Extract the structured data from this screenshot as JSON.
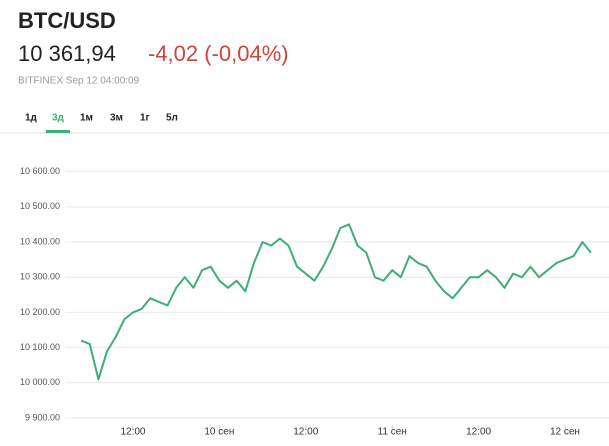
{
  "header": {
    "title": "BTC/USD",
    "price": "10 361,94",
    "change": "-4,02 (-0,04%)",
    "source": "BITFINEX Sep 12 04:00:09",
    "tabs": [
      {
        "label": "1д"
      },
      {
        "label": "3д",
        "active": true
      },
      {
        "label": "1м"
      },
      {
        "label": "3м"
      },
      {
        "label": "1г"
      },
      {
        "label": "5л"
      }
    ]
  },
  "chart_data": {
    "type": "line",
    "color": "#3daf76",
    "grid": true,
    "ylim": [
      9880,
      10690
    ],
    "yticks": [
      {
        "value": 9900,
        "label": "9 900.00"
      },
      {
        "value": 10000,
        "label": "10 000.00"
      },
      {
        "value": 10100,
        "label": "10 100.00"
      },
      {
        "value": 10200,
        "label": "10 200.00"
      },
      {
        "value": 10300,
        "label": "10 300.00"
      },
      {
        "value": 10400,
        "label": "10 400.00"
      },
      {
        "value": 10500,
        "label": "10 500.00"
      },
      {
        "value": 10600,
        "label": "10 600.00"
      }
    ],
    "categories": [
      null,
      null,
      null,
      null,
      null,
      null,
      null,
      "12:00",
      null,
      null,
      null,
      null,
      null,
      null,
      null,
      null,
      null,
      "10 сен",
      null,
      null,
      null,
      null,
      null,
      null,
      null,
      null,
      null,
      "12:00",
      null,
      null,
      null,
      null,
      null,
      null,
      null,
      null,
      null,
      "11 сен",
      null,
      null,
      null,
      null,
      null,
      null,
      null,
      null,
      null,
      "12:00",
      null,
      null,
      null,
      null,
      null,
      null,
      null,
      null,
      null,
      "12 сен",
      null,
      null,
      null
    ],
    "values": [
      null,
      10120,
      10110,
      10010,
      10090,
      10130,
      10180,
      10200,
      10210,
      10240,
      10230,
      10220,
      10270,
      10300,
      10270,
      10320,
      10330,
      10290,
      10270,
      10290,
      10260,
      10340,
      10400,
      10390,
      10410,
      10390,
      10330,
      10310,
      10290,
      10330,
      10380,
      10440,
      10450,
      10390,
      10370,
      10300,
      10290,
      10320,
      10300,
      10360,
      10340,
      10330,
      10290,
      10260,
      10240,
      10270,
      10300,
      10300,
      10320,
      10300,
      10270,
      10310,
      10300,
      10330,
      10300,
      10320,
      10340,
      10350,
      10360,
      10400,
      10370
    ]
  }
}
